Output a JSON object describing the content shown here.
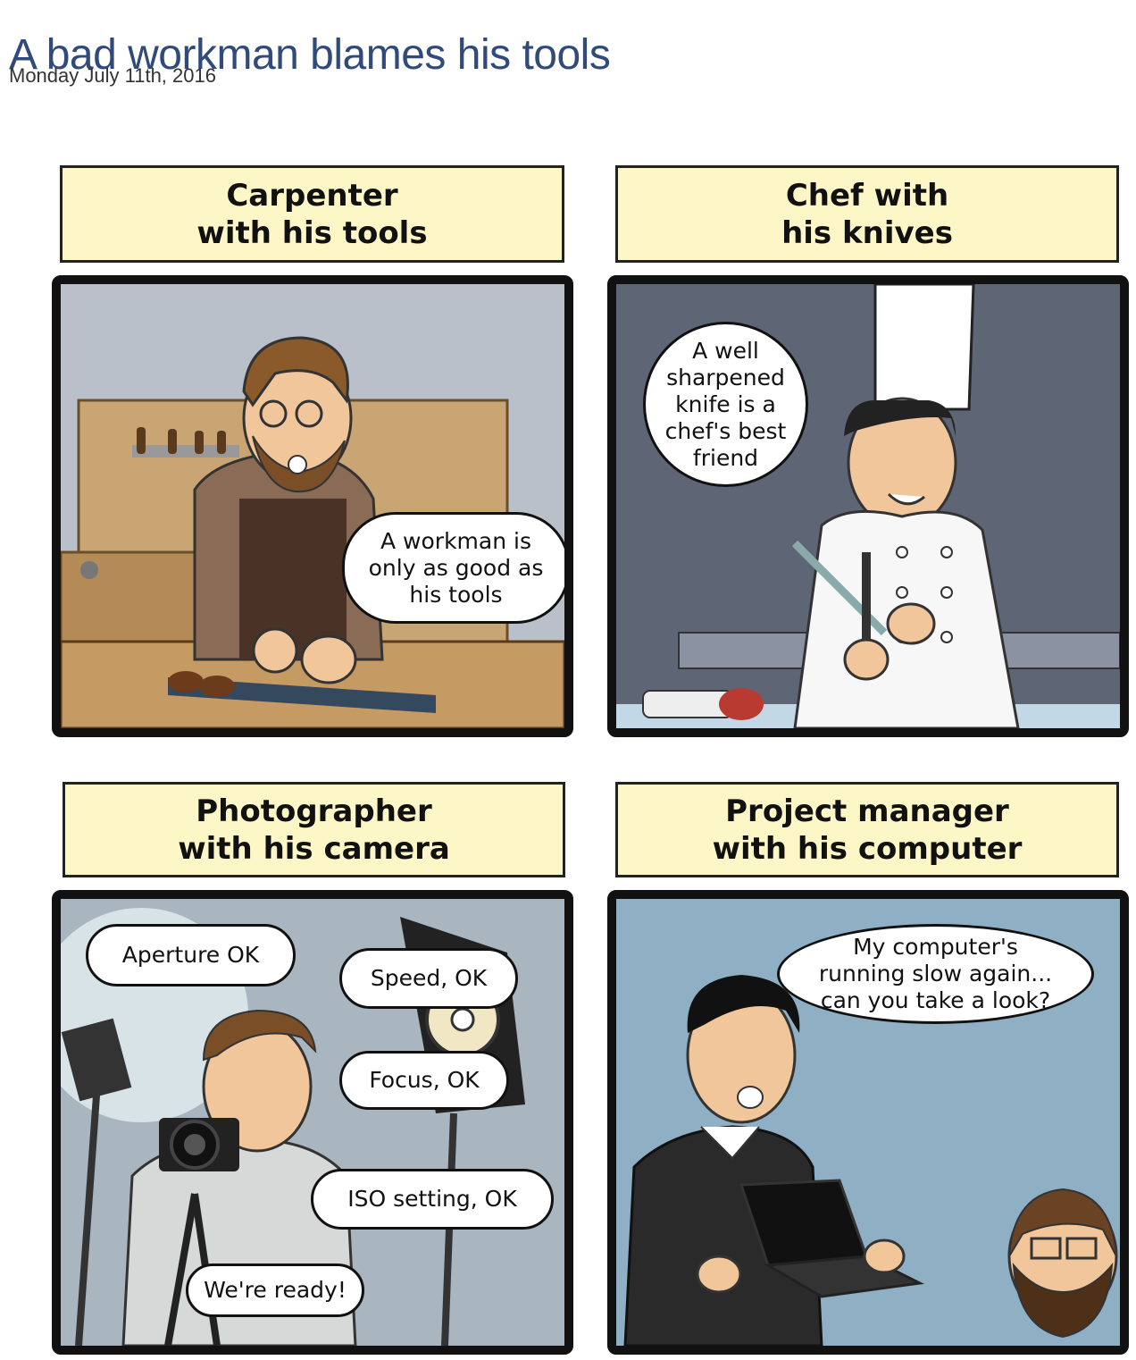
{
  "header": {
    "title": "A bad workman blames his tools",
    "date": "Monday July 11th, 2016"
  },
  "panels": [
    {
      "caption": "Carpenter\nwith his tools",
      "bubbles": [
        "A workman is\nonly as good as\nhis tools"
      ]
    },
    {
      "caption": "Chef with\nhis knives",
      "bubbles": [
        "A well\nsharpened\nknife is a\nchef's best\nfriend"
      ]
    },
    {
      "caption": "Photographer\nwith his camera",
      "bubbles": [
        "Aperture OK",
        "Speed, OK",
        "Focus, OK",
        "ISO setting, OK",
        "We're ready!"
      ]
    },
    {
      "caption": "Project manager\nwith his computer",
      "bubbles": [
        "My computer's\nrunning slow again...\ncan you take a look?"
      ]
    }
  ],
  "colors": {
    "title": "#2f4a7b",
    "caption_bg": "#fdf6c6",
    "panel_border": "#111111"
  }
}
